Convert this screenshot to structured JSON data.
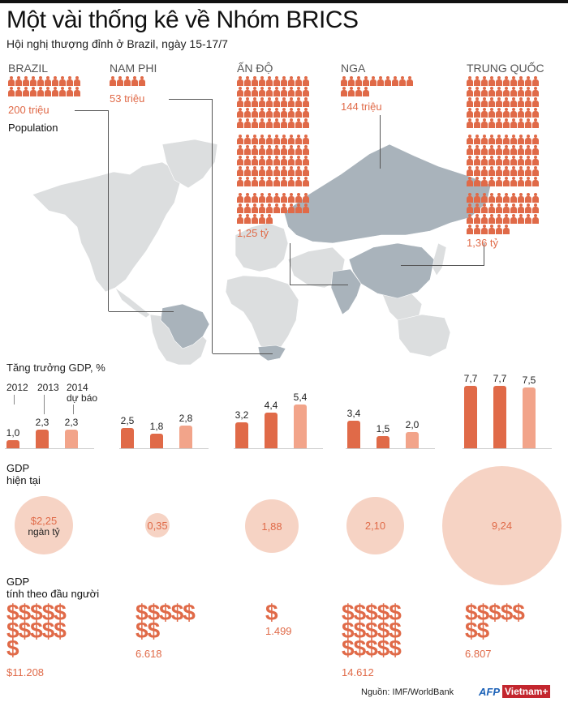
{
  "header": {
    "title": "Một vài thống kê về Nhóm BRICS",
    "subtitle": "Hội nghị thượng đỉnh ở Brazil, ngày 15-17/7"
  },
  "population": {
    "label": "Population",
    "icon": "person-icon",
    "icon_unit": "10 triệu",
    "countries": [
      {
        "name": "BRAZIL",
        "value": "200 triệu",
        "icons": 20
      },
      {
        "name": "NAM PHI",
        "value": "53 triệu",
        "icons": 5
      },
      {
        "name": "ẤN ĐỘ",
        "value": "1,25 tỷ",
        "icons": 125
      },
      {
        "name": "NGA",
        "value": "144 triệu",
        "icons": 14
      },
      {
        "name": "TRUNG QUỐC",
        "value": "1,36 tỷ",
        "icons": 136
      }
    ]
  },
  "gdp_growth": {
    "title": "Tăng trưởng GDP, %",
    "years": [
      "2012",
      "2013",
      "2014"
    ],
    "forecast_label": "dự báo"
  },
  "gdp_current": {
    "title_line1": "GDP",
    "title_line2": "hiện tại",
    "unit": "ngàn tỷ",
    "values": [
      "$2,25",
      "0,35",
      "1,88",
      "2,10",
      "9,24"
    ]
  },
  "gdp_per_capita": {
    "title_line1": "GDP",
    "title_line2": "tính theo đầu người",
    "icon": "dollar-sign-icon",
    "values": [
      "$11.208",
      "6.618",
      "1.499",
      "14.612",
      "6.807"
    ],
    "dollar_rows": [
      [
        "$$$$$",
        "$$$$$",
        "$"
      ],
      [
        "$$$$$",
        "$$"
      ],
      [
        "$"
      ],
      [
        "$$$$$",
        "$$$$$",
        "$$$$$"
      ],
      [
        "$$$$$",
        "$$"
      ]
    ]
  },
  "footer": {
    "source": "Nguồn:  IMF/WorldBank",
    "logo_afp": "AFP",
    "logo_vn": "Vietnam+"
  },
  "colors": {
    "accent": "#e06a48",
    "forecast": "#f2a48a",
    "circle": "#f6d3c4",
    "map_land": "#dcdedf",
    "map_brics": "#a9b3bb"
  },
  "chart_data": [
    {
      "type": "bar",
      "title": "Tăng trưởng GDP, %",
      "categories": [
        "Brazil",
        "Nam Phi",
        "Ấn Độ",
        "Nga",
        "Trung Quốc"
      ],
      "series": [
        {
          "name": "2012",
          "values": [
            1.0,
            2.5,
            3.2,
            3.4,
            7.7
          ]
        },
        {
          "name": "2013",
          "values": [
            2.3,
            1.8,
            4.4,
            1.5,
            7.7
          ]
        },
        {
          "name": "2014 dự báo",
          "values": [
            2.3,
            2.8,
            5.4,
            2.0,
            7.5
          ]
        }
      ],
      "labels": [
        [
          "1,0",
          "2,3",
          "2,3"
        ],
        [
          "2,5",
          "1,8",
          "2,8"
        ],
        [
          "3,2",
          "4,4",
          "5,4"
        ],
        [
          "3,4",
          "1,5",
          "2,0"
        ],
        [
          "7,7",
          "7,7",
          "7,5"
        ]
      ],
      "ylabel": "%",
      "grid": false
    },
    {
      "type": "bubble",
      "title": "GDP hiện tại (ngàn tỷ USD)",
      "categories": [
        "Brazil",
        "Nam Phi",
        "Ấn Độ",
        "Nga",
        "Trung Quốc"
      ],
      "values": [
        2.25,
        0.35,
        1.88,
        2.1,
        9.24
      ]
    },
    {
      "type": "pictogram",
      "title": "GDP tính theo đầu người (USD)",
      "categories": [
        "Brazil",
        "Nam Phi",
        "Ấn Độ",
        "Nga",
        "Trung Quốc"
      ],
      "values": [
        11208,
        6618,
        1499,
        14612,
        6807
      ]
    },
    {
      "type": "pictogram",
      "title": "Population",
      "categories": [
        "Brazil",
        "Nam Phi",
        "Ấn Độ",
        "Nga",
        "Trung Quốc"
      ],
      "values_label": [
        "200 triệu",
        "53 triệu",
        "1,25 tỷ",
        "144 triệu",
        "1,36 tỷ"
      ],
      "values": [
        200000000,
        53000000,
        1250000000,
        144000000,
        1360000000
      ]
    }
  ]
}
